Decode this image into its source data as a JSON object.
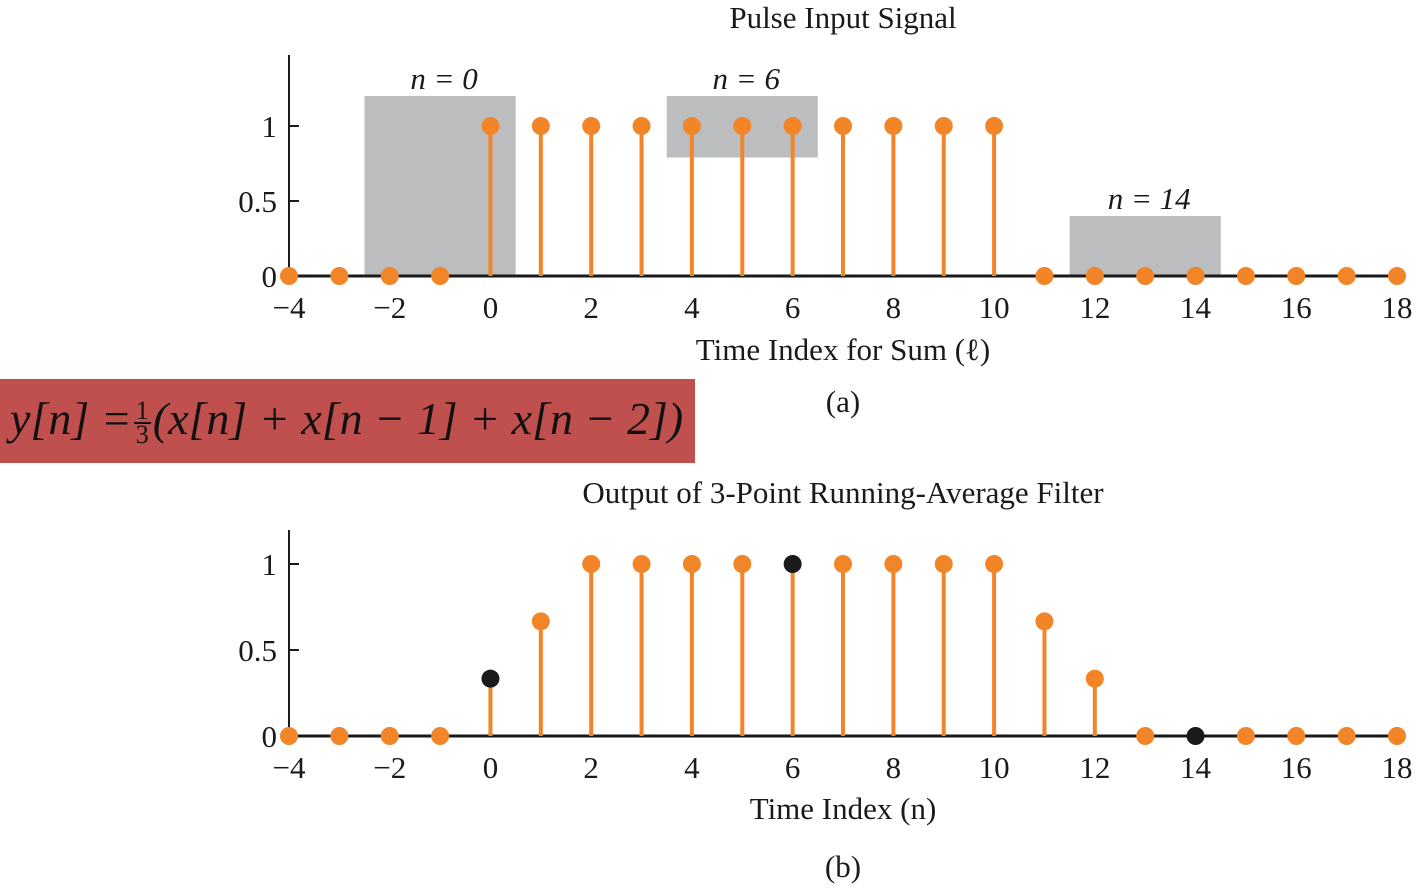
{
  "formula": {
    "lhs": "y[n] =",
    "frac_num": "1",
    "frac_den": "3",
    "rhs": "(x[n] + x[n − 1] + x[n − 2])"
  },
  "colors": {
    "stem": "#f28527",
    "highlight": "#1a1a1a",
    "window": "#bcbdbf",
    "axis": "#1a1a1a",
    "formula_bg": "#c0504d"
  },
  "chart_data": [
    {
      "type": "stem",
      "title": "Pulse Input Signal",
      "xlabel": "Time Index for Sum (ℓ)",
      "caption": "(a)",
      "xlim": [
        -4,
        18
      ],
      "ylim": [
        0,
        1.2
      ],
      "xticks": [
        "−4",
        "−2",
        "0",
        "2",
        "4",
        "6",
        "8",
        "10",
        "12",
        "14",
        "16",
        "18"
      ],
      "xtick_values": [
        -4,
        -2,
        0,
        2,
        4,
        6,
        8,
        10,
        12,
        14,
        16,
        18
      ],
      "yticks": [
        "0",
        "0.5",
        "1"
      ],
      "ytick_values": [
        0,
        0.5,
        1
      ],
      "x": [
        -4,
        -3,
        -2,
        -1,
        0,
        1,
        2,
        3,
        4,
        5,
        6,
        7,
        8,
        9,
        10,
        11,
        12,
        13,
        14,
        15,
        16,
        17,
        18
      ],
      "y": [
        0,
        0,
        0,
        0,
        1,
        1,
        1,
        1,
        1,
        1,
        1,
        1,
        1,
        1,
        1,
        0,
        0,
        0,
        0,
        0,
        0,
        0,
        0
      ],
      "windows": [
        {
          "label": "n = 0",
          "x_from": -2.5,
          "x_to": 0.5,
          "y_from": 0,
          "y_to": 1.2
        },
        {
          "label": "n = 6",
          "x_from": 3.5,
          "x_to": 6.5,
          "y_from": 0.79,
          "y_to": 1.2
        },
        {
          "label": "n = 14",
          "x_from": 11.5,
          "x_to": 14.5,
          "y_from": 0,
          "y_to": 0.4
        }
      ],
      "highlight_x": []
    },
    {
      "type": "stem",
      "title": "Output of 3-Point Running-Average Filter",
      "xlabel": "Time Index (n)",
      "caption": "(b)",
      "xlim": [
        -4,
        18
      ],
      "ylim": [
        0,
        1.2
      ],
      "xticks": [
        "−4",
        "−2",
        "0",
        "2",
        "4",
        "6",
        "8",
        "10",
        "12",
        "14",
        "16",
        "18"
      ],
      "xtick_values": [
        -4,
        -2,
        0,
        2,
        4,
        6,
        8,
        10,
        12,
        14,
        16,
        18
      ],
      "yticks": [
        "0",
        "0.5",
        "1"
      ],
      "ytick_values": [
        0,
        0.5,
        1
      ],
      "x": [
        -4,
        -3,
        -2,
        -1,
        0,
        1,
        2,
        3,
        4,
        5,
        6,
        7,
        8,
        9,
        10,
        11,
        12,
        13,
        14,
        15,
        16,
        17,
        18
      ],
      "y": [
        0,
        0,
        0,
        0,
        0.3333,
        0.6667,
        1,
        1,
        1,
        1,
        1,
        1,
        1,
        1,
        1,
        0.6667,
        0.3333,
        0,
        0,
        0,
        0,
        0,
        0
      ],
      "windows": [],
      "highlight_x": [
        0,
        6,
        14
      ]
    }
  ]
}
